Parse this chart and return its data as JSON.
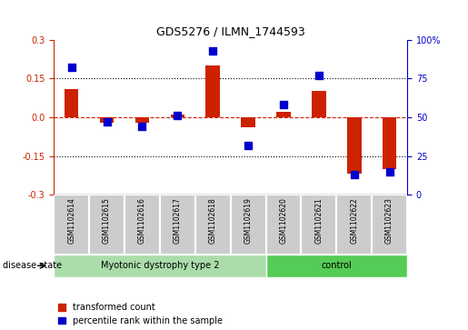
{
  "title": "GDS5276 / ILMN_1744593",
  "samples": [
    "GSM1102614",
    "GSM1102615",
    "GSM1102616",
    "GSM1102617",
    "GSM1102618",
    "GSM1102619",
    "GSM1102620",
    "GSM1102621",
    "GSM1102622",
    "GSM1102623"
  ],
  "transformed_count": [
    0.11,
    -0.02,
    -0.02,
    0.01,
    0.2,
    -0.04,
    0.02,
    0.1,
    -0.22,
    -0.2
  ],
  "percentile_rank": [
    82,
    47,
    44,
    51,
    93,
    32,
    58,
    77,
    13,
    15
  ],
  "groups": [
    {
      "label": "Myotonic dystrophy type 2",
      "start": 0,
      "end": 6,
      "color": "#90EE90"
    },
    {
      "label": "control",
      "start": 6,
      "end": 10,
      "color": "#55DD55"
    }
  ],
  "bar_color": "#CC2200",
  "dot_color": "#0000CC",
  "left_ylim": [
    -0.3,
    0.3
  ],
  "right_ylim": [
    0,
    100
  ],
  "left_yticks": [
    -0.3,
    -0.15,
    0.0,
    0.15,
    0.3
  ],
  "right_yticks": [
    0,
    25,
    50,
    75,
    100
  ],
  "dotted_lines": [
    -0.15,
    0.15
  ],
  "red_dashed_line": 0.0,
  "legend_items": [
    "transformed count",
    "percentile rank within the sample"
  ],
  "disease_state_label": "disease state",
  "bar_width": 0.4,
  "dot_size": 35,
  "sample_label_color": "#CCCCCC",
  "group1_color": "#AADDAA",
  "group2_color": "#55CC55"
}
